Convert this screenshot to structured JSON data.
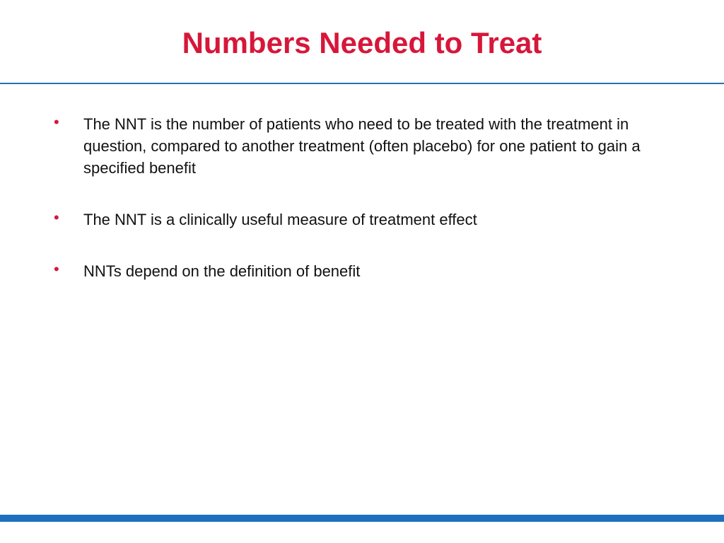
{
  "slide": {
    "title": "Numbers Needed to Treat",
    "bullet_symbol": "•",
    "bullets": [
      {
        "text": "The NNT is the number of patients who need to be treated with the treatment in question, compared to another treatment (often placebo) for one patient to gain a specified benefit"
      },
      {
        "text": "The NNT is a clinically useful measure of treatment effect"
      },
      {
        "text": "NNTs depend on the definition of benefit"
      }
    ],
    "colors": {
      "title": "#d6173a",
      "bullet": "#d6173a",
      "rule": "#2a6fb0",
      "bottom_bar": "#1f6fbf"
    }
  }
}
